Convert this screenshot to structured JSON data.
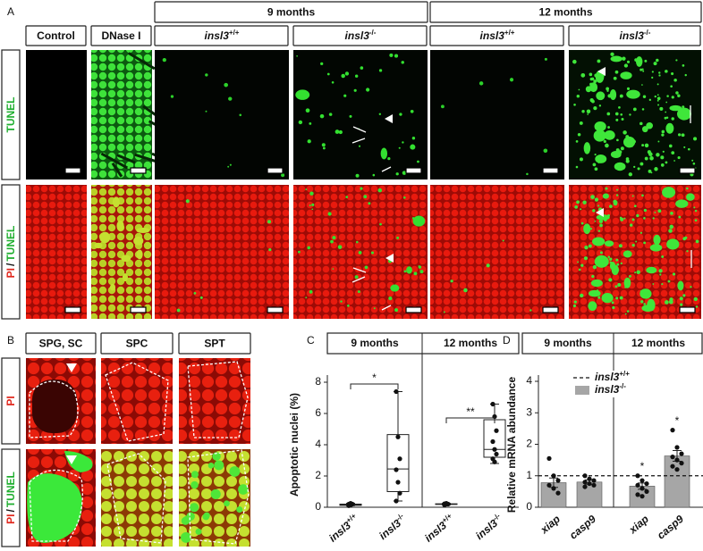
{
  "panel_a": {
    "label": "A",
    "groups": [
      "9 months",
      "12 months"
    ],
    "controls": [
      "Control",
      "DNase I"
    ],
    "genotypes": [
      {
        "gene": "insl3",
        "genotype": "+/+"
      },
      {
        "gene": "insl3",
        "genotype": "-/-"
      },
      {
        "gene": "insl3",
        "genotype": "+/+"
      },
      {
        "gene": "insl3",
        "genotype": "-/-"
      }
    ],
    "rows": [
      {
        "parts": [
          {
            "text": "TUNEL",
            "color": "#1fae2f"
          }
        ]
      },
      {
        "parts": [
          {
            "text": "PI",
            "color": "#e0261b"
          },
          {
            "text": "/",
            "color": "#111111"
          },
          {
            "text": "TUNEL",
            "color": "#1fae2f"
          }
        ]
      }
    ]
  },
  "panel_b": {
    "label": "B",
    "columns": [
      "SPG, SC",
      "SPC",
      "SPT"
    ],
    "rows": [
      {
        "parts": [
          {
            "text": "PI",
            "color": "#e0261b"
          }
        ]
      },
      {
        "parts": [
          {
            "text": "PI",
            "color": "#e0261b"
          },
          {
            "text": "/",
            "color": "#111111"
          },
          {
            "text": "TUNEL",
            "color": "#1fae2f"
          }
        ]
      }
    ]
  },
  "chart_data": [
    {
      "panel_label": "C",
      "type": "box",
      "groups": [
        "9 months",
        "12 months"
      ],
      "categories": [
        {
          "gene": "insl3",
          "genotype": "+/+"
        },
        {
          "gene": "insl3",
          "genotype": "-/-"
        },
        {
          "gene": "insl3",
          "genotype": "+/+"
        },
        {
          "gene": "insl3",
          "genotype": "-/-"
        }
      ],
      "y_label": "Apoptotic nuclei (%)",
      "ylim": [
        0,
        8
      ],
      "yticks": [
        0,
        2,
        4,
        6,
        8
      ],
      "boxes": [
        {
          "min": 0.1,
          "q1": 0.12,
          "median": 0.15,
          "q3": 0.2,
          "max": 0.25,
          "points": [
            0.1,
            0.15,
            0.2,
            0.2,
            0.25
          ]
        },
        {
          "min": 0.4,
          "q1": 1.0,
          "median": 2.45,
          "q3": 4.65,
          "max": 7.4,
          "points": [
            7.4,
            4.5,
            3.1,
            2.4,
            1.6,
            0.9,
            0.4
          ]
        },
        {
          "min": 0.15,
          "q1": 0.18,
          "median": 0.2,
          "q3": 0.22,
          "max": 0.25,
          "points": [
            0.15,
            0.2,
            0.2,
            0.22,
            0.25
          ]
        },
        {
          "min": 2.8,
          "q1": 3.2,
          "median": 3.7,
          "q3": 5.6,
          "max": 6.6,
          "points": [
            6.6,
            5.8,
            4.9,
            4.2,
            3.7,
            3.4,
            3.1,
            2.9
          ]
        }
      ],
      "annotations": [
        "*",
        "**"
      ]
    },
    {
      "panel_label": "D",
      "type": "bar",
      "groups": [
        "9 months",
        "12 months"
      ],
      "categories": [
        "xiap",
        "casp9",
        "xiap",
        "casp9"
      ],
      "y_label": "Relative mRNA abundance",
      "ylim": [
        0,
        4
      ],
      "yticks": [
        0,
        1,
        2,
        3,
        4
      ],
      "reference": {
        "name": {
          "gene": "insl3",
          "genotype": "+/+"
        },
        "value": 1
      },
      "series": [
        {
          "name": {
            "gene": "insl3",
            "genotype": "-/-"
          },
          "color": "#a6a6a6",
          "values": [
            0.78,
            0.8,
            0.67,
            1.63
          ],
          "errors": [
            0.15,
            0.07,
            0.1,
            0.17
          ],
          "points": [
            [
              1.55,
              1.0,
              0.85,
              0.7,
              0.6,
              0.45
            ],
            [
              1.0,
              0.9,
              0.85,
              0.8,
              0.75,
              0.7,
              0.65
            ],
            [
              1.0,
              0.85,
              0.75,
              0.7,
              0.6,
              0.5,
              0.4,
              0.35
            ],
            [
              2.45,
              1.9,
              1.7,
              1.6,
              1.5,
              1.4,
              1.3,
              1.2
            ]
          ]
        }
      ],
      "annotations": [
        null,
        null,
        "*",
        "*"
      ]
    }
  ]
}
